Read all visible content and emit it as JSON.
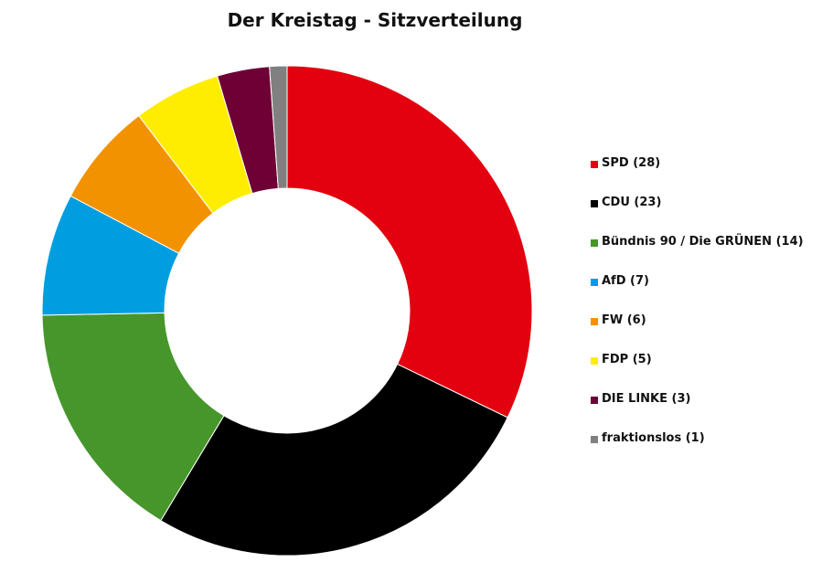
{
  "chart_data": {
    "type": "pie",
    "title": "Der Kreistag - Sitzverteilung",
    "legend": "right",
    "slices": [
      {
        "label": "SPD",
        "value": 28,
        "color": "#e3000f"
      },
      {
        "label": "CDU",
        "value": 23,
        "color": "#000000"
      },
      {
        "label": "Bündnis 90 / Die GRÜNEN",
        "value": 14,
        "color": "#46962b"
      },
      {
        "label": "AfD",
        "value": 7,
        "color": "#009ee0"
      },
      {
        "label": "FW",
        "value": 6,
        "color": "#f39200"
      },
      {
        "label": "FDP",
        "value": 5,
        "color": "#ffed00"
      },
      {
        "label": "DIE LINKE",
        "value": 3,
        "color": "#6e0035"
      },
      {
        "label": "fraktionslos",
        "value": 1,
        "color": "#808080"
      }
    ],
    "legend_entries": [
      "SPD (28)",
      "CDU (23)",
      "Bündnis 90 / Die GRÜNEN (14)",
      "AfD (7)",
      "FW (6)",
      "FDP (5)",
      "DIE LINKE (3)",
      "fraktionslos (1)"
    ]
  }
}
